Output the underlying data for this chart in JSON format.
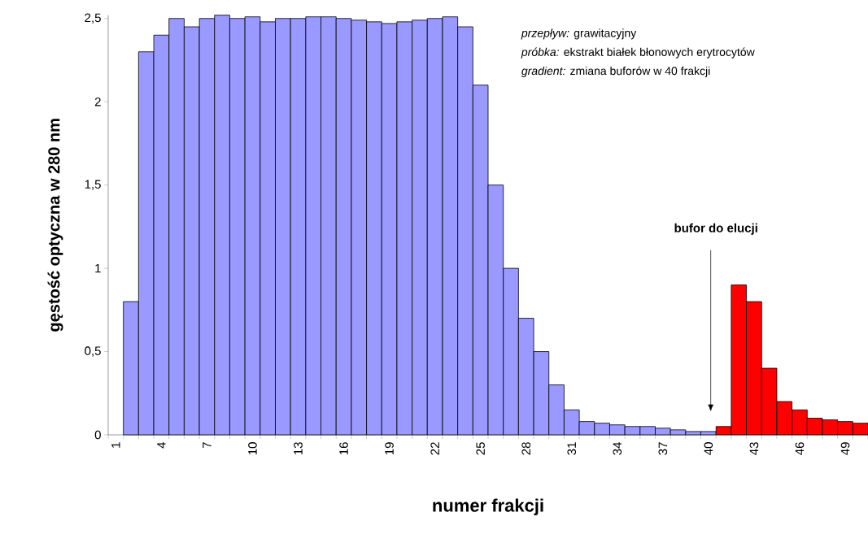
{
  "chart_data": {
    "type": "bar",
    "xlabel": "numer frakcji",
    "ylabel": "gęstość optyczna w 280 nm",
    "categories": [
      "1",
      null,
      null,
      "4",
      null,
      null,
      "7",
      null,
      null,
      "10",
      null,
      null,
      "13",
      null,
      null,
      "16",
      null,
      null,
      "19",
      null,
      null,
      "22",
      null,
      null,
      "25",
      null,
      null,
      "28",
      null,
      null,
      "31",
      null,
      null,
      "34",
      null,
      null,
      "37",
      null,
      null,
      "40",
      null,
      null,
      "43",
      null,
      null,
      "46",
      null,
      null,
      "49",
      null
    ],
    "values": [
      null,
      0.8,
      2.3,
      2.4,
      2.5,
      2.45,
      2.5,
      2.52,
      2.5,
      2.51,
      2.48,
      2.5,
      2.5,
      2.51,
      2.51,
      2.5,
      2.49,
      2.48,
      2.47,
      2.48,
      2.49,
      2.5,
      2.51,
      2.45,
      2.1,
      1.5,
      1.0,
      0.7,
      0.5,
      0.3,
      0.15,
      0.08,
      0.07,
      0.06,
      0.05,
      0.05,
      0.04,
      0.03,
      0.02,
      0.02,
      0.05,
      0.9,
      0.8,
      0.4,
      0.2,
      0.15,
      0.1,
      0.09,
      0.08,
      0.07
    ],
    "colors": [
      "#9999ff",
      "#9999ff",
      "#9999ff",
      "#9999ff",
      "#9999ff",
      "#9999ff",
      "#9999ff",
      "#9999ff",
      "#9999ff",
      "#9999ff",
      "#9999ff",
      "#9999ff",
      "#9999ff",
      "#9999ff",
      "#9999ff",
      "#9999ff",
      "#9999ff",
      "#9999ff",
      "#9999ff",
      "#9999ff",
      "#9999ff",
      "#9999ff",
      "#9999ff",
      "#9999ff",
      "#9999ff",
      "#9999ff",
      "#9999ff",
      "#9999ff",
      "#9999ff",
      "#9999ff",
      "#9999ff",
      "#9999ff",
      "#9999ff",
      "#9999ff",
      "#9999ff",
      "#9999ff",
      "#9999ff",
      "#9999ff",
      "#9999ff",
      "#9999ff",
      "#ff0000",
      "#ff0000",
      "#ff0000",
      "#ff0000",
      "#ff0000",
      "#ff0000",
      "#ff0000",
      "#ff0000",
      "#ff0000",
      "#ff0000"
    ],
    "ylim": [
      0,
      2.52
    ],
    "yticks": [
      0,
      {
        "value": 0.5,
        "label": "0,5"
      },
      1,
      {
        "value": 1.5,
        "label": "1,5"
      },
      2,
      {
        "value": 2.5,
        "label": "2,5"
      }
    ],
    "grid": false,
    "annotations": [
      "*przepływ:* grawitacyjny",
      "*próbka:* ekstrakt białek błonowych erytrocytów",
      "*gradient:* zmiana buforów w 40 frakcji",
      "bufor do elucji"
    ]
  }
}
